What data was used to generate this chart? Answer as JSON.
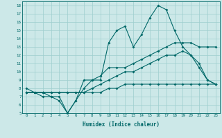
{
  "title": "",
  "xlabel": "Humidex (Indice chaleur)",
  "xlim": [
    -0.5,
    23.5
  ],
  "ylim": [
    5,
    18.5
  ],
  "xticks": [
    0,
    1,
    2,
    3,
    4,
    5,
    6,
    7,
    8,
    9,
    10,
    11,
    12,
    13,
    14,
    15,
    16,
    17,
    18,
    19,
    20,
    21,
    22,
    23
  ],
  "yticks": [
    5,
    6,
    7,
    8,
    9,
    10,
    11,
    12,
    13,
    14,
    15,
    16,
    17,
    18
  ],
  "background_color": "#cce8e8",
  "line_color": "#006868",
  "grid_color": "#9ecece",
  "line1_y": [
    8,
    7.5,
    7.5,
    7,
    7,
    5,
    6.5,
    9,
    9,
    9.5,
    10.5,
    10.5,
    10.5,
    11,
    11.5,
    12,
    12.5,
    13,
    13.5,
    13.5,
    13.5,
    13,
    13,
    13
  ],
  "line2_y": [
    7.5,
    7.5,
    7.5,
    7.5,
    7.5,
    7.5,
    7.5,
    7.5,
    7.5,
    7.5,
    8,
    8,
    8.5,
    8.5,
    8.5,
    8.5,
    8.5,
    8.5,
    8.5,
    8.5,
    8.5,
    8.5,
    8.5,
    8.5
  ],
  "line3_y": [
    7.5,
    7.5,
    7.5,
    7.5,
    7.5,
    7.5,
    7.5,
    7.5,
    8,
    8.5,
    9,
    9.5,
    10,
    10,
    10.5,
    11,
    11.5,
    12,
    12,
    12.5,
    12,
    10.5,
    9,
    8.5
  ],
  "line4_y": [
    7.5,
    7.5,
    7,
    7,
    6.5,
    5,
    6.5,
    8,
    9,
    9,
    13.5,
    15,
    15.5,
    13,
    14.5,
    16.5,
    18,
    17.5,
    15,
    13,
    12,
    11,
    9,
    8.5
  ]
}
